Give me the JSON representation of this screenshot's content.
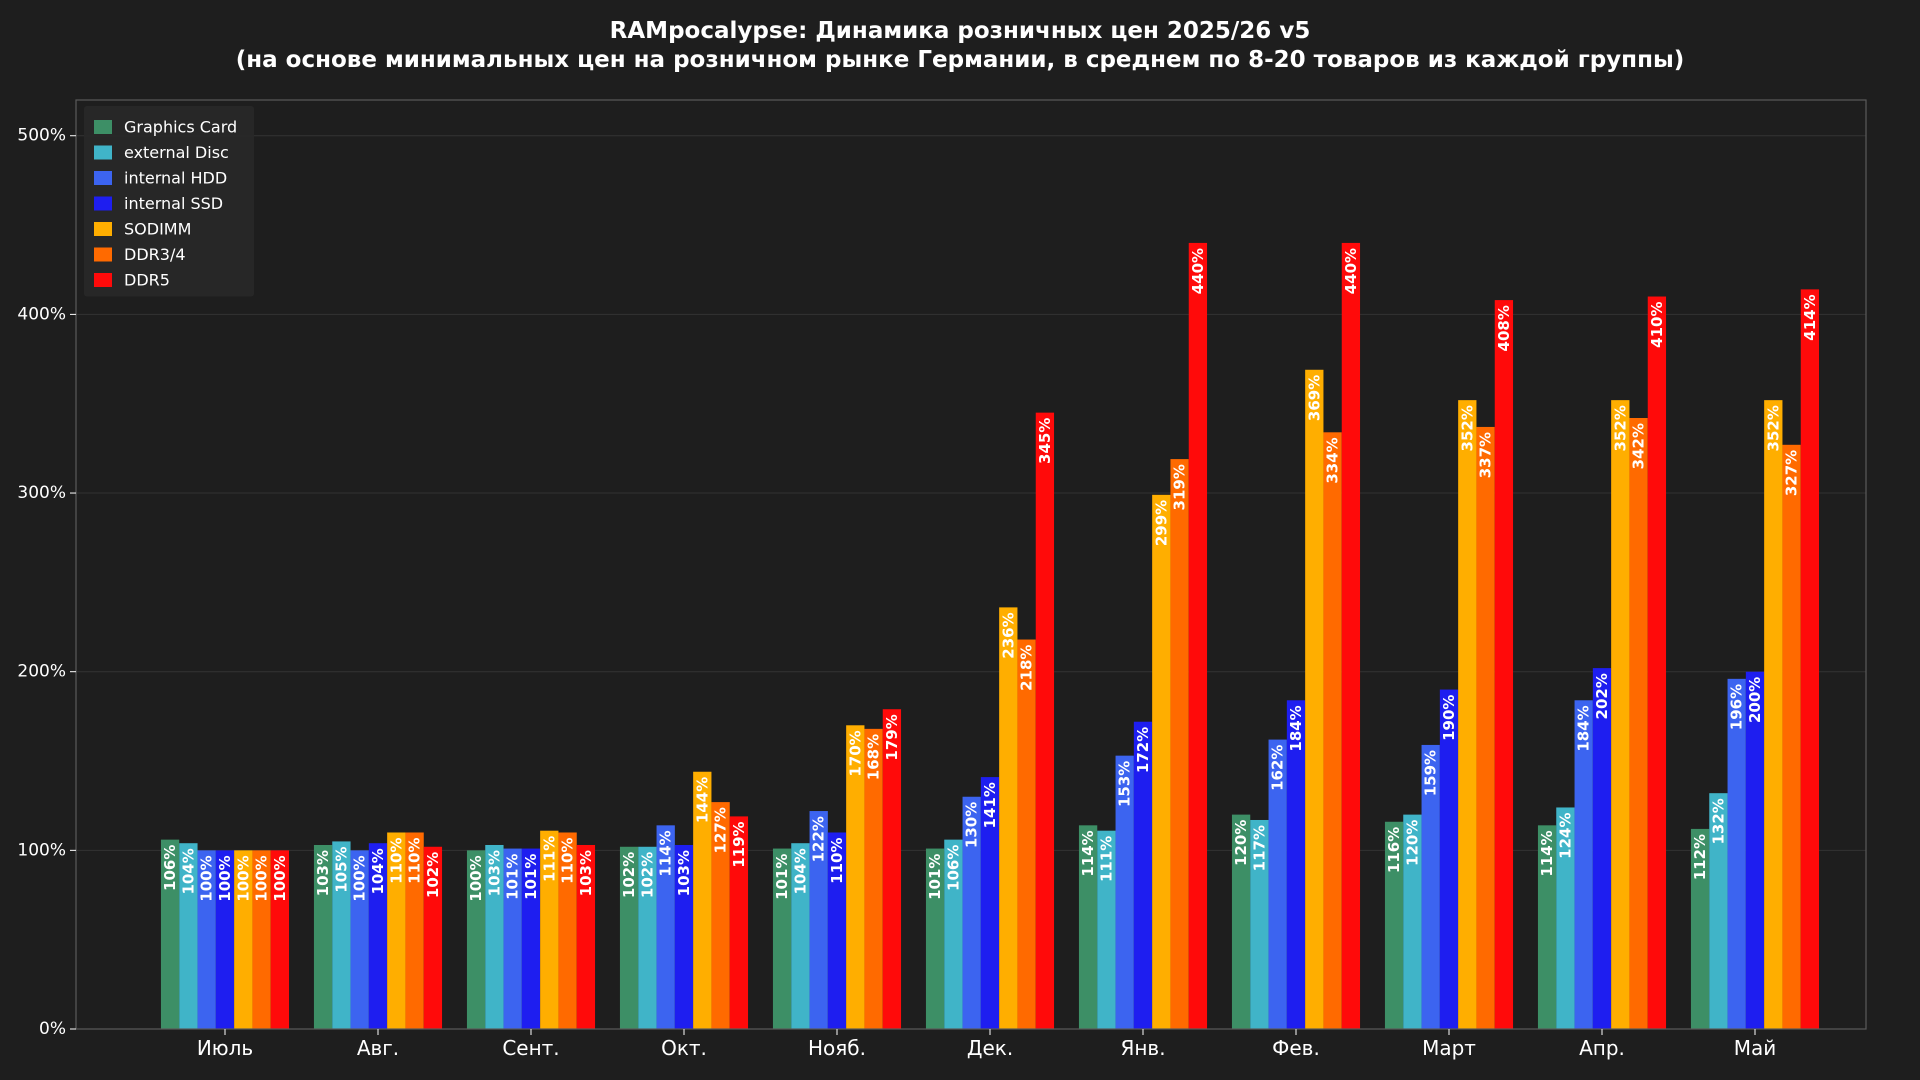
{
  "chart_data": {
    "type": "bar",
    "title_lines": [
      "RAMpocalypse: Динамика розничных цен 2025/26 v5",
      "(на основе минимальных цен на розничном рынке Германии, в среднем по 8-20 товаров из каждой группы)"
    ],
    "categories": [
      "Июль",
      "Авг.",
      "Сент.",
      "Окт.",
      "Нояб.",
      "Дек.",
      "Янв.",
      "Фев.",
      "Март",
      "Апр.",
      "Май"
    ],
    "ylim": [
      0,
      520
    ],
    "yticks": [
      0,
      100,
      200,
      300,
      400,
      500
    ],
    "ytick_labels": [
      "0%",
      "100%",
      "200%",
      "300%",
      "400%",
      "500%"
    ],
    "value_suffix": "%",
    "grid": true,
    "legend_position": "top-left",
    "series": [
      {
        "name": "Graphics Card",
        "color": "#3d8f66",
        "values": [
          106,
          103,
          100,
          102,
          101,
          101,
          114,
          120,
          116,
          114,
          112
        ]
      },
      {
        "name": "external Disc",
        "color": "#40b4c8",
        "values": [
          104,
          105,
          103,
          102,
          104,
          106,
          111,
          117,
          120,
          124,
          132
        ]
      },
      {
        "name": "internal HDD",
        "color": "#3c64f0",
        "values": [
          100,
          100,
          101,
          114,
          122,
          130,
          153,
          162,
          159,
          184,
          196
        ]
      },
      {
        "name": "internal SSD",
        "color": "#1e1ef0",
        "values": [
          100,
          104,
          101,
          103,
          110,
          141,
          172,
          184,
          190,
          202,
          200
        ]
      },
      {
        "name": "SODIMM",
        "color": "#ffae00",
        "values": [
          100,
          110,
          111,
          144,
          170,
          236,
          299,
          369,
          352,
          352,
          352
        ]
      },
      {
        "name": "DDR3/4",
        "color": "#ff6a00",
        "values": [
          100,
          110,
          110,
          127,
          168,
          218,
          319,
          334,
          337,
          342,
          327
        ]
      },
      {
        "name": "DDR5",
        "color": "#ff0a0a",
        "values": [
          100,
          102,
          103,
          119,
          179,
          345,
          440,
          440,
          408,
          410,
          414
        ]
      }
    ],
    "colors": {
      "background": "#1e1e1e",
      "axes_border": "#5a5a5a",
      "grid": "#333333",
      "text": "#ffffff",
      "legend_bg": "#282828"
    }
  }
}
